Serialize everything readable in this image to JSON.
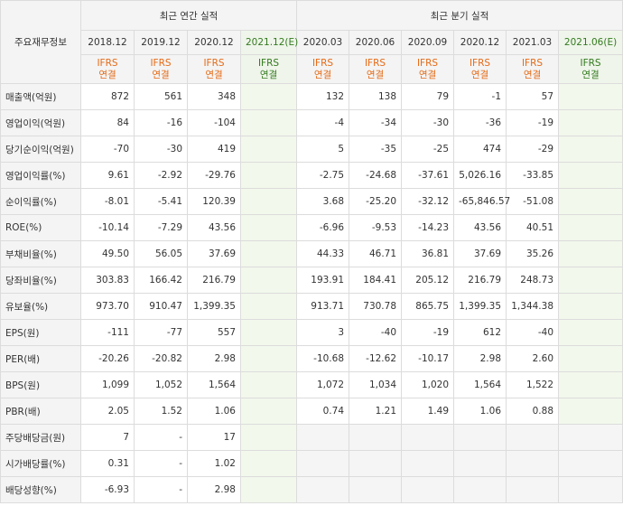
{
  "header": {
    "row_label": "주요재무정보",
    "annual_title": "최근 연간 실적",
    "quarter_title": "최근 분기 실적",
    "ifrs_line1": "IFRS",
    "ifrs_line2": "연결",
    "annual_periods": [
      "2018.12",
      "2019.12",
      "2020.12",
      "2021.12(E)"
    ],
    "quarter_periods": [
      "2020.03",
      "2020.06",
      "2020.09",
      "2020.12",
      "2021.03",
      "2021.06(E)"
    ]
  },
  "rows": [
    {
      "label": "매출액(억원)",
      "values": [
        "872",
        "561",
        "348",
        "",
        "132",
        "138",
        "79",
        "-1",
        "57",
        ""
      ]
    },
    {
      "label": "영업이익(억원)",
      "values": [
        "84",
        "-16",
        "-104",
        "",
        "-4",
        "-34",
        "-30",
        "-36",
        "-19",
        ""
      ]
    },
    {
      "label": "당기순이익(억원)",
      "values": [
        "-70",
        "-30",
        "419",
        "",
        "5",
        "-35",
        "-25",
        "474",
        "-29",
        ""
      ]
    },
    {
      "label": "영업이익률(%)",
      "values": [
        "9.61",
        "-2.92",
        "-29.76",
        "",
        "-2.75",
        "-24.68",
        "-37.61",
        "5,026.16",
        "-33.85",
        ""
      ]
    },
    {
      "label": "순이익률(%)",
      "values": [
        "-8.01",
        "-5.41",
        "120.39",
        "",
        "3.68",
        "-25.20",
        "-32.12",
        "-65,846.57",
        "-51.08",
        ""
      ]
    },
    {
      "label": "ROE(%)",
      "values": [
        "-10.14",
        "-7.29",
        "43.56",
        "",
        "-6.96",
        "-9.53",
        "-14.23",
        "43.56",
        "40.51",
        ""
      ]
    },
    {
      "label": "부채비율(%)",
      "values": [
        "49.50",
        "56.05",
        "37.69",
        "",
        "44.33",
        "46.71",
        "36.81",
        "37.69",
        "35.26",
        ""
      ]
    },
    {
      "label": "당좌비율(%)",
      "values": [
        "303.83",
        "166.42",
        "216.79",
        "",
        "193.91",
        "184.41",
        "205.12",
        "216.79",
        "248.73",
        ""
      ]
    },
    {
      "label": "유보율(%)",
      "values": [
        "973.70",
        "910.47",
        "1,399.35",
        "",
        "913.71",
        "730.78",
        "865.75",
        "1,399.35",
        "1,344.38",
        ""
      ]
    },
    {
      "label": "EPS(원)",
      "values": [
        "-111",
        "-77",
        "557",
        "",
        "3",
        "-40",
        "-19",
        "612",
        "-40",
        ""
      ]
    },
    {
      "label": "PER(배)",
      "values": [
        "-20.26",
        "-20.82",
        "2.98",
        "",
        "-10.68",
        "-12.62",
        "-10.17",
        "2.98",
        "2.60",
        ""
      ]
    },
    {
      "label": "BPS(원)",
      "values": [
        "1,099",
        "1,052",
        "1,564",
        "",
        "1,072",
        "1,034",
        "1,020",
        "1,564",
        "1,522",
        ""
      ]
    },
    {
      "label": "PBR(배)",
      "values": [
        "2.05",
        "1.52",
        "1.06",
        "",
        "0.74",
        "1.21",
        "1.49",
        "1.06",
        "0.88",
        ""
      ]
    },
    {
      "label": "주당배당금(원)",
      "values": [
        "7",
        "-",
        "17",
        "",
        "",
        "",
        "",
        "",
        "",
        ""
      ]
    },
    {
      "label": "시가배당률(%)",
      "values": [
        "0.31",
        "-",
        "1.02",
        "",
        "",
        "",
        "",
        "",
        "",
        ""
      ]
    },
    {
      "label": "배당성향(%)",
      "values": [
        "-6.93",
        "-",
        "2.98",
        "",
        "",
        "",
        "",
        "",
        "",
        ""
      ]
    }
  ],
  "colors": {
    "negative": "#e02020",
    "ifrs": "#e56a16",
    "estimate_header": "#337a1f",
    "estimate_bg": "#f2f8ec"
  }
}
